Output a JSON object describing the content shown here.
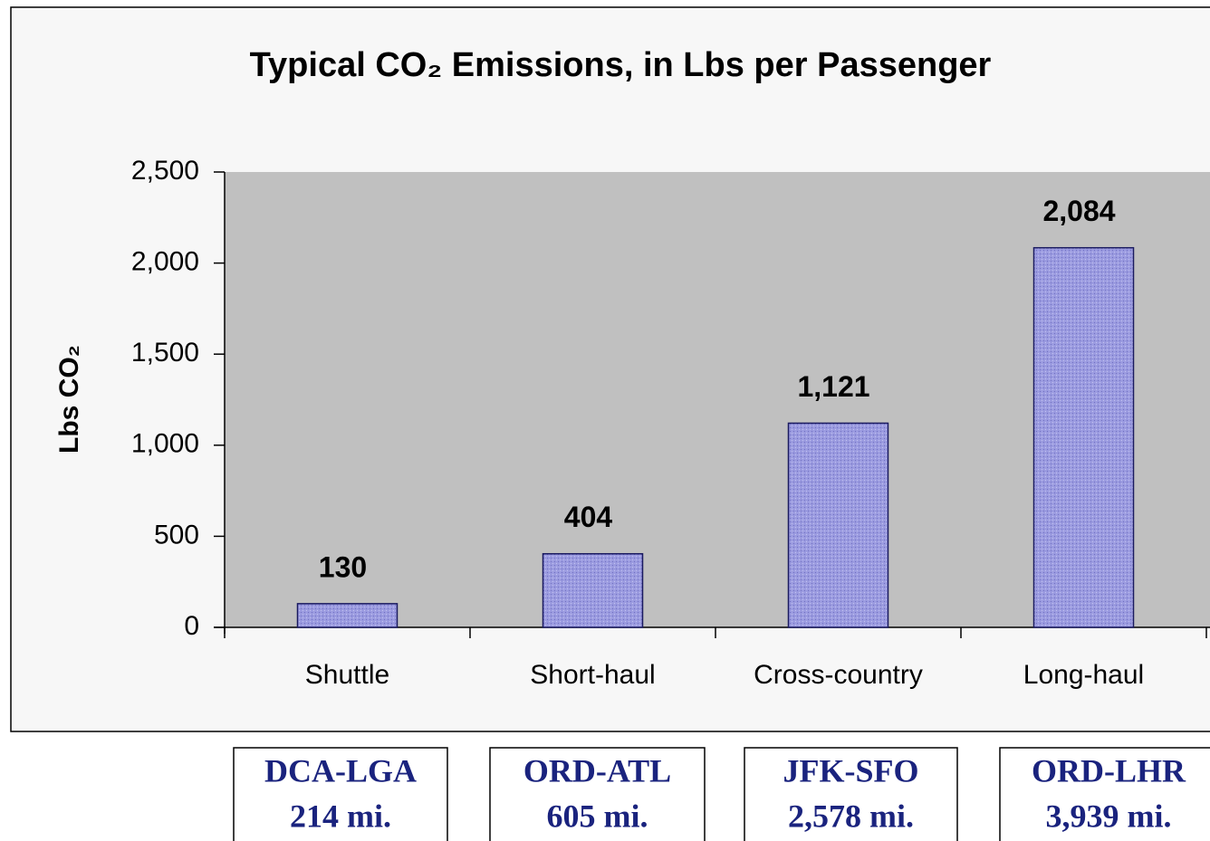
{
  "chart_data": {
    "type": "bar",
    "title": "Typical CO₂ Emissions, in Lbs per Passenger",
    "y_label": "Lbs CO₂",
    "categories": [
      "Shuttle",
      "Short-haul",
      "Cross-country",
      "Long-haul"
    ],
    "values": [
      130,
      404,
      1121,
      2084
    ],
    "value_labels": [
      "130",
      "404",
      "1,121",
      "2,084"
    ],
    "color": "#9b9be0",
    "ylim": [
      0,
      2500
    ],
    "yticks": [
      0,
      500,
      {
        "value": 1000,
        "label": "1,000"
      },
      {
        "value": 1500,
        "label": "1,500"
      },
      {
        "value": 2000,
        "label": "2,000"
      },
      {
        "value": 2500,
        "label": "2,500"
      }
    ],
    "grid": false,
    "routes": [
      {
        "name": "DCA-LGA",
        "distance": "214 mi."
      },
      {
        "name": "ORD-ATL",
        "distance": "605 mi."
      },
      {
        "name": "JFK-SFO",
        "distance": "2,578 mi."
      },
      {
        "name": "ORD-LHR",
        "distance": "3,939 mi."
      }
    ]
  }
}
